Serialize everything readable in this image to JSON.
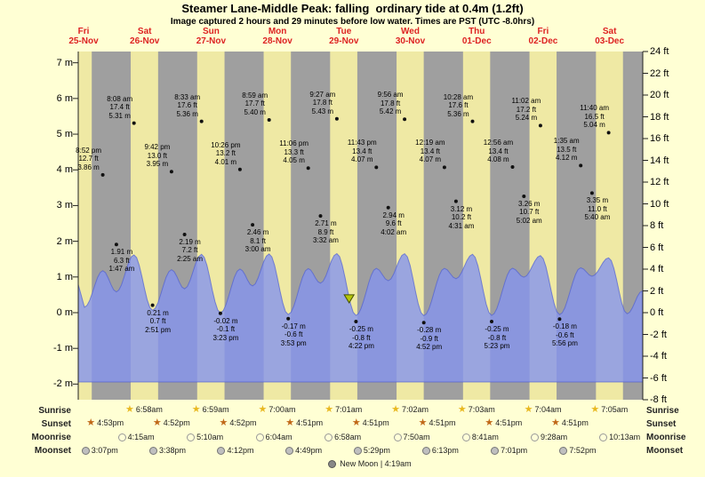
{
  "title": "Steamer Lane-Middle Peak: falling  ordinary tide at 0.4m (1.2ft)",
  "subtitle": "Image captured 2 hours and 29 minutes before low water. Times are PST (UTC -8.0hrs)",
  "days": [
    {
      "name": "Fri",
      "date": "25-Nov"
    },
    {
      "name": "Sat",
      "date": "26-Nov"
    },
    {
      "name": "Sun",
      "date": "27-Nov"
    },
    {
      "name": "Mon",
      "date": "28-Nov"
    },
    {
      "name": "Tue",
      "date": "29-Nov"
    },
    {
      "name": "Wed",
      "date": "30-Nov"
    },
    {
      "name": "Thu",
      "date": "01-Dec"
    },
    {
      "name": "Fri",
      "date": "02-Dec"
    },
    {
      "name": "Sat",
      "date": "03-Dec"
    }
  ],
  "axis": {
    "left_unit": "m",
    "right_unit": "ft",
    "left_ticks": [
      7,
      6,
      5,
      4,
      3,
      2,
      1,
      0,
      -1,
      -2
    ],
    "right_ticks": [
      24,
      22,
      20,
      18,
      16,
      14,
      12,
      10,
      8,
      6,
      4,
      2,
      0,
      -2,
      -4,
      -6,
      -8
    ]
  },
  "chart_data": {
    "type": "area",
    "title": "Steamer Lane-Middle Peak tide, Fri 25-Nov to Sat 03-Dec",
    "x_start": "Fri 25-Nov 12:00 PST",
    "x_days": 8.5,
    "ylim_m": [
      -2.44,
      7.32
    ],
    "ylim_ft": [
      -8,
      24
    ],
    "tide_events": [
      {
        "day": 0,
        "time": "12:00 pm",
        "m": "2.6",
        "label": "anchor"
      },
      {
        "day": 0,
        "time": "2:15 pm",
        "m": "0.5",
        "label": "anchor"
      },
      {
        "day": 0,
        "time": "8:52 pm",
        "ft": "12.7",
        "m": "3.86",
        "label": "high"
      },
      {
        "day": 1,
        "time": "1:47 am",
        "ft": "6.3",
        "m": "1.91",
        "label": "low"
      },
      {
        "day": 1,
        "time": "8:08 am",
        "ft": "17.4",
        "m": "5.31",
        "label": "high"
      },
      {
        "day": 1,
        "time": "2:51 pm",
        "ft": "0.7",
        "m": "0.21",
        "label": "low"
      },
      {
        "day": 1,
        "time": "9:42 pm",
        "ft": "13.0",
        "m": "3.95",
        "label": "high"
      },
      {
        "day": 2,
        "time": "2:25 am",
        "ft": "7.2",
        "m": "2.19",
        "label": "low"
      },
      {
        "day": 2,
        "time": "8:33 am",
        "ft": "17.6",
        "m": "5.36",
        "label": "high"
      },
      {
        "day": 2,
        "time": "3:23 pm",
        "ft": "-0.1",
        "m": "-0.02",
        "label": "low"
      },
      {
        "day": 2,
        "time": "10:26 pm",
        "ft": "13.2",
        "m": "4.01",
        "label": "high"
      },
      {
        "day": 3,
        "time": "3:00 am",
        "ft": "8.1",
        "m": "2.46",
        "label": "low"
      },
      {
        "day": 3,
        "time": "8:59 am",
        "ft": "17.7",
        "m": "5.40",
        "label": "high"
      },
      {
        "day": 3,
        "time": "3:53 pm",
        "ft": "-0.6",
        "m": "-0.17",
        "label": "low"
      },
      {
        "day": 3,
        "time": "11:06 pm",
        "ft": "13.3",
        "m": "4.05",
        "label": "high"
      },
      {
        "day": 4,
        "time": "3:32 am",
        "ft": "8.9",
        "m": "2.71",
        "label": "low"
      },
      {
        "day": 4,
        "time": "9:27 am",
        "ft": "17.8",
        "m": "5.43",
        "label": "high"
      },
      {
        "day": 4,
        "time": "4:22 pm",
        "ft": "-0.8",
        "m": "-0.25",
        "label": "low"
      },
      {
        "day": 4,
        "time": "11:43 pm",
        "ft": "13.4",
        "m": "4.07",
        "label": "high"
      },
      {
        "day": 5,
        "time": "4:02 am",
        "ft": "9.6",
        "m": "2.94",
        "label": "low"
      },
      {
        "day": 5,
        "time": "9:56 am",
        "ft": "17.8",
        "m": "5.42",
        "label": "high"
      },
      {
        "day": 5,
        "time": "4:52 pm",
        "ft": "-0.9",
        "m": "-0.28",
        "label": "low"
      },
      {
        "day": 6,
        "time": "12:19 am",
        "ft": "13.4",
        "m": "4.07",
        "label": "high"
      },
      {
        "day": 6,
        "time": "4:31 am",
        "ft": "10.2",
        "m": "3.12",
        "label": "low"
      },
      {
        "day": 6,
        "time": "10:28 am",
        "ft": "17.6",
        "m": "5.36",
        "label": "high"
      },
      {
        "day": 6,
        "time": "5:23 pm",
        "ft": "-0.8",
        "m": "-0.25",
        "label": "low"
      },
      {
        "day": 7,
        "time": "12:56 am",
        "ft": "13.4",
        "m": "4.08",
        "label": "high"
      },
      {
        "day": 7,
        "time": "5:02 am",
        "ft": "10.7",
        "m": "3.26",
        "label": "low"
      },
      {
        "day": 7,
        "time": "11:02 am",
        "ft": "17.2",
        "m": "5.24",
        "label": "high"
      },
      {
        "day": 7,
        "time": "5:56 pm",
        "ft": "-0.6",
        "m": "-0.18",
        "label": "low"
      },
      {
        "day": 8,
        "time": "1:35 am",
        "ft": "13.5",
        "m": "4.12",
        "label": "high"
      },
      {
        "day": 8,
        "time": "5:40 am",
        "ft": "11.0",
        "m": "3.35",
        "label": "low"
      },
      {
        "day": 8,
        "time": "11:40 am",
        "ft": "16.5",
        "m": "5.04",
        "label": "high"
      },
      {
        "day": 8,
        "time": "6:20 pm",
        "m": "-0.1",
        "label": "anchor"
      },
      {
        "day": 8,
        "time": "11:55 pm",
        "m": "2.0",
        "label": "anchor"
      }
    ],
    "current_marker": {
      "day": 4,
      "time": "1:53 pm",
      "height_m": 0.4,
      "height_label": "0.4m (1.2ft)"
    }
  },
  "astro": {
    "sunrise": {
      "label": "Sunrise",
      "events": [
        {
          "day": 1,
          "time": "6:58am"
        },
        {
          "day": 2,
          "time": "6:59am"
        },
        {
          "day": 3,
          "time": "7:00am"
        },
        {
          "day": 4,
          "time": "7:01am"
        },
        {
          "day": 5,
          "time": "7:02am"
        },
        {
          "day": 6,
          "time": "7:03am"
        },
        {
          "day": 7,
          "time": "7:04am"
        },
        {
          "day": 8,
          "time": "7:05am"
        }
      ]
    },
    "sunset": {
      "label": "Sunset",
      "events": [
        {
          "day": 0,
          "time": "4:53pm"
        },
        {
          "day": 1,
          "time": "4:52pm"
        },
        {
          "day": 2,
          "time": "4:52pm"
        },
        {
          "day": 3,
          "time": "4:51pm"
        },
        {
          "day": 4,
          "time": "4:51pm"
        },
        {
          "day": 5,
          "time": "4:51pm"
        },
        {
          "day": 6,
          "time": "4:51pm"
        },
        {
          "day": 7,
          "time": "4:51pm"
        }
      ]
    },
    "moonrise": {
      "label": "Moonrise",
      "events": [
        {
          "day": 1,
          "time": "4:15am"
        },
        {
          "day": 2,
          "time": "5:10am"
        },
        {
          "day": 3,
          "time": "6:04am"
        },
        {
          "day": 4,
          "time": "6:58am"
        },
        {
          "day": 5,
          "time": "7:50am"
        },
        {
          "day": 6,
          "time": "8:41am"
        },
        {
          "day": 7,
          "time": "9:28am"
        },
        {
          "day": 8,
          "time": "10:13am"
        }
      ]
    },
    "moonset": {
      "label": "Moonset",
      "events": [
        {
          "day": 0,
          "time": "3:07pm"
        },
        {
          "day": 1,
          "time": "3:38pm"
        },
        {
          "day": 2,
          "time": "4:12pm"
        },
        {
          "day": 3,
          "time": "4:49pm"
        },
        {
          "day": 4,
          "time": "5:29pm"
        },
        {
          "day": 5,
          "time": "6:13pm"
        },
        {
          "day": 6,
          "time": "7:01pm"
        },
        {
          "day": 7,
          "time": "7:52pm"
        }
      ]
    },
    "moon_phase": "New Moon | 4:19am"
  },
  "colors": {
    "background": "#ffffd4",
    "day_band": "#efe9a4",
    "night_band": "#9f9f9f",
    "tide_fill": "rgba(132,148,238,0.8)",
    "tide_edge": "rgba(80,95,210,0.7)",
    "date_red": "#dd2222",
    "marker": "#b6c60a"
  }
}
